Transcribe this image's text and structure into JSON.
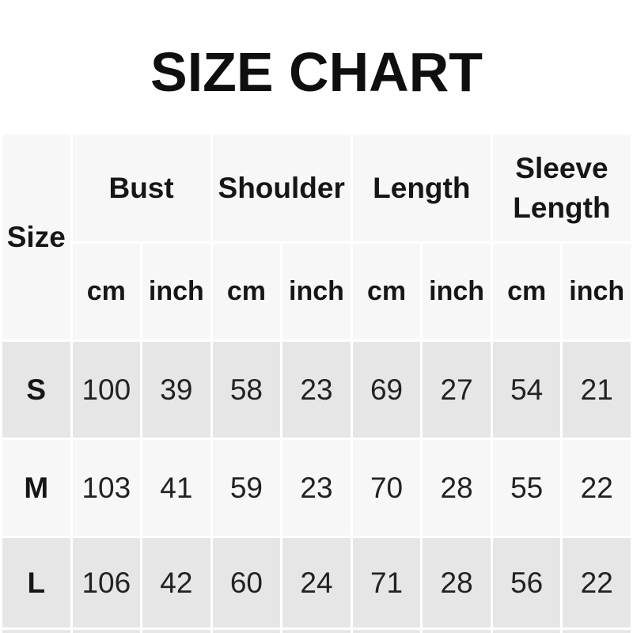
{
  "title": "SIZE CHART",
  "colors": {
    "page_bg": "#ffffff",
    "header_bg": "#f7f7f7",
    "row_light_bg": "#f7f7f7",
    "row_dark_bg": "#e6e6e6",
    "grid_line": "#ffffff",
    "title_color": "#0f0f0f",
    "heading_color": "#161616",
    "value_color": "#222222"
  },
  "table": {
    "size_header": "Size",
    "groups": [
      "Bust",
      "Shoulder",
      "Length",
      "Sleeve Length"
    ],
    "units": [
      "cm",
      "inch",
      "cm",
      "inch",
      "cm",
      "inch",
      "cm",
      "inch"
    ],
    "rows": [
      {
        "size": "S",
        "values": [
          "100",
          "39",
          "58",
          "23",
          "69",
          "27",
          "54",
          "21"
        ]
      },
      {
        "size": "M",
        "values": [
          "103",
          "41",
          "59",
          "23",
          "70",
          "28",
          "55",
          "22"
        ]
      },
      {
        "size": "L",
        "values": [
          "106",
          "42",
          "60",
          "24",
          "71",
          "28",
          "56",
          "22"
        ]
      }
    ]
  },
  "chart_data": {
    "type": "table",
    "title": "SIZE CHART",
    "columns": [
      "Size",
      "Bust cm",
      "Bust inch",
      "Shoulder cm",
      "Shoulder inch",
      "Length cm",
      "Length inch",
      "Sleeve Length cm",
      "Sleeve Length inch"
    ],
    "rows": [
      [
        "S",
        100,
        39,
        58,
        23,
        69,
        27,
        54,
        21
      ],
      [
        "M",
        103,
        41,
        59,
        23,
        70,
        28,
        55,
        22
      ],
      [
        "L",
        106,
        42,
        60,
        24,
        71,
        28,
        56,
        22
      ]
    ]
  }
}
